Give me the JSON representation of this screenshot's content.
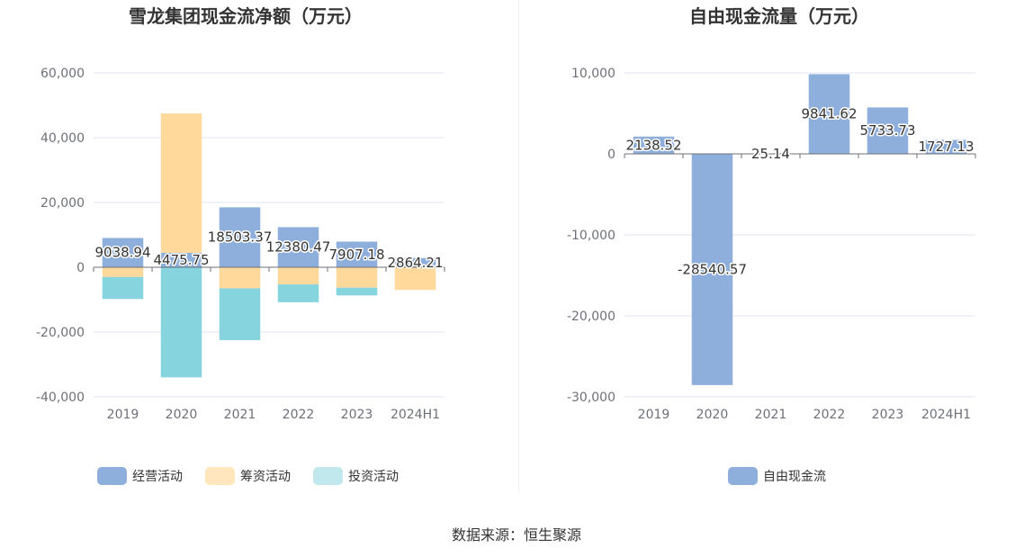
{
  "source": "数据来源：恒生聚源",
  "chart_data": [
    {
      "type": "bar",
      "stacked": true,
      "title": "雪龙集团现金流净额（万元）",
      "categories": [
        "2019",
        "2020",
        "2021",
        "2022",
        "2023",
        "2024H1"
      ],
      "ylim": [
        -40000,
        60000
      ],
      "yticks": [
        60000,
        40000,
        20000,
        0,
        -20000,
        -40000
      ],
      "ytick_labels": [
        "60,000",
        "40,000",
        "20,000",
        "0",
        "-20,000",
        "-40,000"
      ],
      "grid": true,
      "legend_position": "bottom",
      "series": [
        {
          "name": "经营活动",
          "color": "#8eaedc",
          "values": [
            9038.94,
            4475.75,
            18503.37,
            12380.47,
            7907.18,
            2864.21
          ],
          "labels": [
            "9038.94",
            "4475.75",
            "18503.37",
            "12380.47",
            "7907.18",
            "2864.21"
          ]
        },
        {
          "name": "筹资活动",
          "color": "#ffd99c",
          "legend_color": "#ffe6bd",
          "values": [
            -3000,
            43000,
            -6500,
            -5300,
            -6300,
            -7000
          ]
        },
        {
          "name": "投资活动",
          "color": "#86d4dd",
          "legend_color": "#c0e8ed",
          "values": [
            -6800,
            -34000,
            -16000,
            -5500,
            -2400,
            0
          ]
        }
      ]
    },
    {
      "type": "bar",
      "title": "自由现金流量（万元）",
      "categories": [
        "2019",
        "2020",
        "2021",
        "2022",
        "2023",
        "2024H1"
      ],
      "ylim": [
        -30000,
        10000
      ],
      "yticks": [
        10000,
        0,
        -10000,
        -20000,
        -30000
      ],
      "ytick_labels": [
        "10,000",
        "0",
        "-10,000",
        "-20,000",
        "-30,000"
      ],
      "grid": true,
      "legend_position": "bottom",
      "series": [
        {
          "name": "自由现金流",
          "color": "#8eaedc",
          "values": [
            2138.52,
            -28540.57,
            25.14,
            9841.62,
            5733.73,
            1727.13
          ],
          "labels": [
            "2138.52",
            "-28540.57",
            "25.14",
            "9841.62",
            "5733.73",
            "1727.13"
          ]
        }
      ]
    }
  ]
}
